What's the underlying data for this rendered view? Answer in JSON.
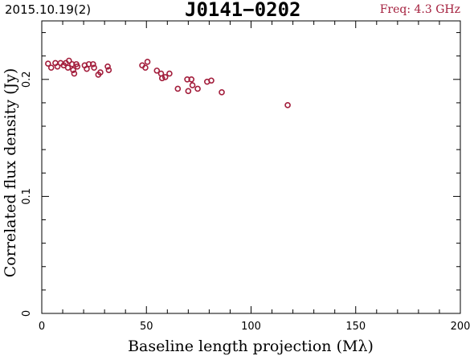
{
  "header": {
    "date_label": "2015.10.19(2)",
    "source_name": "J0141−0202",
    "freq_label": "Freq: 4.3 GHz"
  },
  "colors": {
    "marker": "#a31e3c",
    "axis": "#000000"
  },
  "chart_data": {
    "type": "scatter",
    "title": "J0141−0202",
    "xlabel": "Baseline length projection (Mλ)",
    "ylabel": "Correlated flux density (Jy)",
    "xlim": [
      0,
      200
    ],
    "ylim": [
      0,
      0.25
    ],
    "xticks": [
      0,
      50,
      100,
      150,
      200
    ],
    "yticks": [
      0,
      0.1,
      0.2
    ],
    "xtick_labels": [
      "0",
      "50",
      "100",
      "150",
      "200"
    ],
    "ytick_labels": [
      "0",
      "0.1",
      "0.2"
    ],
    "grid": false,
    "marker": "open-circle",
    "series": [
      {
        "points": [
          [
            3.0,
            0.2135
          ],
          [
            4.5,
            0.21
          ],
          [
            6.5,
            0.214
          ],
          [
            7.5,
            0.211
          ],
          [
            9.0,
            0.214
          ],
          [
            10.5,
            0.212
          ],
          [
            11.5,
            0.214
          ],
          [
            12.5,
            0.21
          ],
          [
            13.0,
            0.216
          ],
          [
            14.5,
            0.213
          ],
          [
            15.0,
            0.208
          ],
          [
            15.5,
            0.205
          ],
          [
            16.5,
            0.213
          ],
          [
            17.0,
            0.211
          ],
          [
            20.5,
            0.212
          ],
          [
            21.5,
            0.209
          ],
          [
            22.5,
            0.213
          ],
          [
            24.5,
            0.213
          ],
          [
            25.0,
            0.21
          ],
          [
            27.0,
            0.204
          ],
          [
            28.0,
            0.206
          ],
          [
            31.5,
            0.211
          ],
          [
            32.0,
            0.208
          ],
          [
            48.0,
            0.212
          ],
          [
            49.5,
            0.21
          ],
          [
            50.5,
            0.215
          ],
          [
            55.0,
            0.2075
          ],
          [
            57.0,
            0.205
          ],
          [
            57.5,
            0.201
          ],
          [
            59.0,
            0.202
          ],
          [
            61.0,
            0.205
          ],
          [
            65.0,
            0.192
          ],
          [
            69.5,
            0.2
          ],
          [
            70.0,
            0.19
          ],
          [
            71.5,
            0.2
          ],
          [
            72.0,
            0.195
          ],
          [
            74.5,
            0.192
          ],
          [
            79.0,
            0.198
          ],
          [
            81.0,
            0.199
          ],
          [
            86.0,
            0.189
          ],
          [
            117.5,
            0.178
          ]
        ]
      }
    ]
  }
}
